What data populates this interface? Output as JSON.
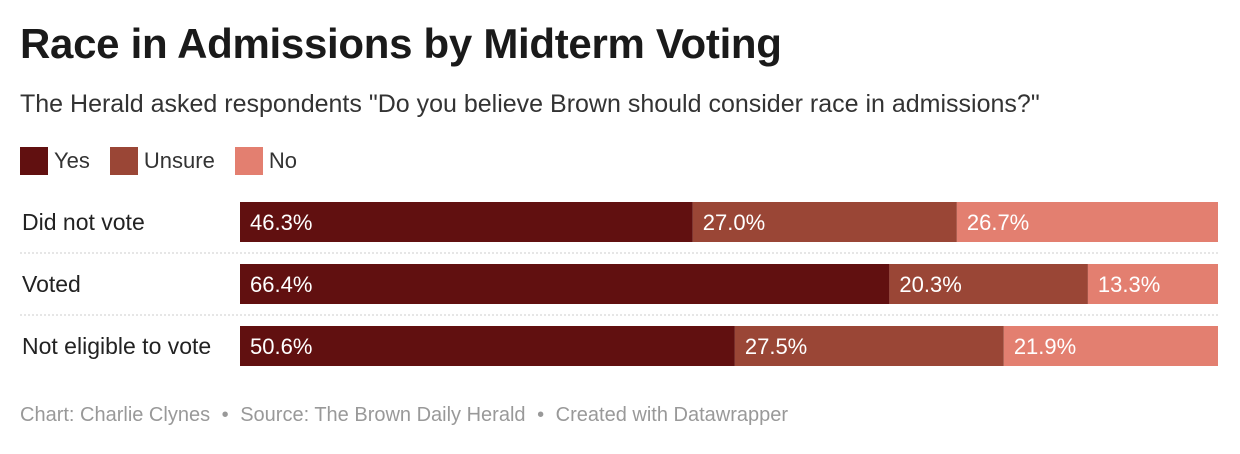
{
  "title": "Race in Admissions by Midterm Voting",
  "subtitle": "The Herald asked respondents \"Do you believe Brown should consider race in admissions?\"",
  "legend": [
    {
      "label": "Yes",
      "color": "#611010"
    },
    {
      "label": "Unsure",
      "color": "#9a4636"
    },
    {
      "label": "No",
      "color": "#e37f70"
    }
  ],
  "chart_data": {
    "type": "bar",
    "orientation": "horizontal",
    "stacked": true,
    "categories": [
      "Did not vote",
      "Voted",
      "Not eligible to vote"
    ],
    "series": [
      {
        "name": "Yes",
        "color": "#611010",
        "values": [
          46.3,
          66.4,
          50.6
        ],
        "labels": [
          "46.3%",
          "66.4%",
          "50.6%"
        ]
      },
      {
        "name": "Unsure",
        "color": "#9a4636",
        "values": [
          27.0,
          20.3,
          27.5
        ],
        "labels": [
          "27.0%",
          "20.3%",
          "27.5%"
        ]
      },
      {
        "name": "No",
        "color": "#e37f70",
        "values": [
          26.7,
          13.3,
          21.9
        ],
        "labels": [
          "26.7%",
          "13.3%",
          "21.9%"
        ]
      }
    ],
    "xlim": [
      0,
      100
    ],
    "title": "Race in Admissions by Midterm Voting",
    "xlabel": "",
    "ylabel": "",
    "grid": false,
    "legend_position": "top-left"
  },
  "footer": {
    "chart_credit": "Chart: Charlie Clynes",
    "source": "Source: The Brown Daily Herald",
    "tool": "Created with Datawrapper",
    "separator": "•"
  }
}
